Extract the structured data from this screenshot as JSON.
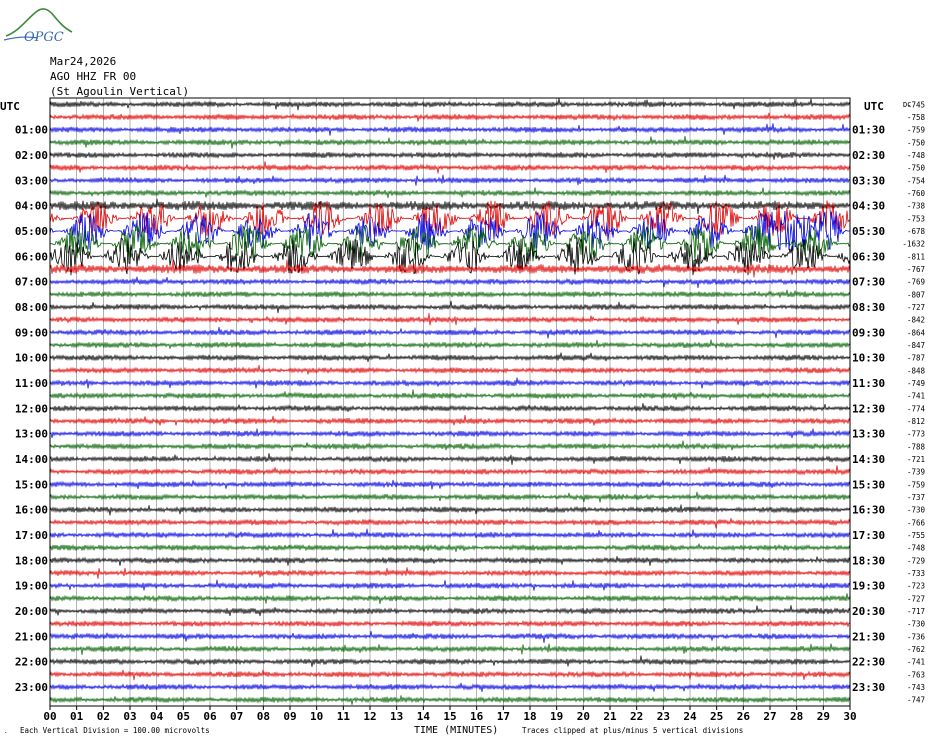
{
  "header": {
    "date": "Mar24,2026",
    "channel": "AGO HHZ FR 00",
    "station": "(St Agoulin Vertical)",
    "logo_text": "OPGC",
    "utc_left": "UTC",
    "utc_right": "UTC",
    "dc_label": "DC"
  },
  "footer": {
    "scale_note": "Each Vertical Division =  100.00 microvolts",
    "xlabel": "TIME (MINUTES)",
    "clip_note": "Traces clipped at plus/minus 5 vertical divisions"
  },
  "colors": {
    "trace_cycle": [
      "#000000",
      "#e00000",
      "#0000e0",
      "#006000"
    ],
    "grid": "#808080"
  },
  "chart_data": {
    "type": "line",
    "title": "",
    "xlabel": "TIME (MINUTES)",
    "ylabel": "",
    "xlim": [
      0,
      30
    ],
    "x_ticks": [
      "00",
      "01",
      "02",
      "03",
      "04",
      "05",
      "06",
      "07",
      "08",
      "09",
      "10",
      "11",
      "12",
      "13",
      "14",
      "15",
      "16",
      "17",
      "18",
      "19",
      "20",
      "21",
      "22",
      "23",
      "24",
      "25",
      "26",
      "27",
      "28",
      "29",
      "30"
    ],
    "left_hour_labels": [
      "01:00",
      "02:00",
      "03:00",
      "04:00",
      "05:00",
      "06:00",
      "07:00",
      "08:00",
      "09:00",
      "10:00",
      "11:00",
      "12:00",
      "13:00",
      "14:00",
      "15:00",
      "16:00",
      "17:00",
      "18:00",
      "19:00",
      "20:00",
      "21:00",
      "22:00",
      "23:00"
    ],
    "right_hour_labels": [
      "01:30",
      "02:30",
      "03:30",
      "04:30",
      "05:30",
      "06:30",
      "07:30",
      "08:30",
      "09:30",
      "10:30",
      "11:30",
      "12:30",
      "13:30",
      "14:30",
      "15:30",
      "16:30",
      "17:30",
      "18:30",
      "19:30",
      "20:30",
      "21:30",
      "22:30",
      "23:30"
    ],
    "dc_offsets": [
      -745,
      -758,
      -759,
      -750,
      -748,
      -750,
      -754,
      -760,
      -738,
      -753,
      -678,
      -1632,
      -811,
      -767,
      -769,
      -807,
      -727,
      -842,
      -864,
      -847,
      -787,
      -848,
      -749,
      -741,
      -774,
      -812,
      -773,
      -788,
      -721,
      -739,
      -759,
      -737,
      -730,
      -766,
      -755,
      -748,
      -729,
      -733,
      -723,
      -727,
      -717,
      -730,
      -736,
      -762,
      -741,
      -763,
      -743,
      -747
    ],
    "grid": true,
    "legend": "none"
  }
}
